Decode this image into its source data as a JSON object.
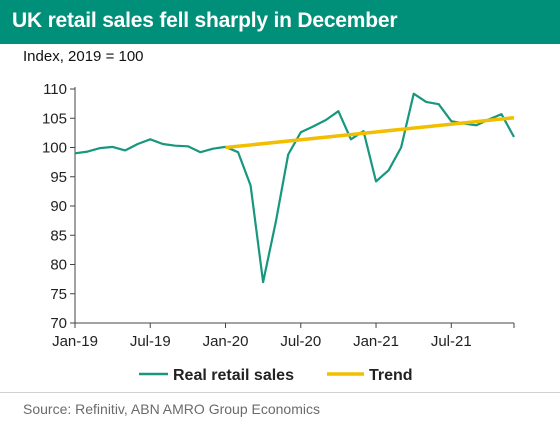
{
  "header": {
    "title": "UK retail sales fell sharply in December",
    "subtitle": "Index, 2019 = 100"
  },
  "footer": {
    "source": "Source: Refinitiv, ABN AMRO Group Economics"
  },
  "colors": {
    "title_bg": "#00907a",
    "retail_series": "#18977f",
    "trend_series": "#f1bf00",
    "axis": "#444444"
  },
  "chart_data": {
    "type": "line",
    "title": "UK retail sales fell sharply in December",
    "ylabel": "Index, 2019 = 100",
    "xlabel": "",
    "ylim": [
      70,
      110
    ],
    "yticks": [
      70,
      75,
      80,
      85,
      90,
      95,
      100,
      105,
      110
    ],
    "grid": false,
    "legend_position": "bottom",
    "x": [
      "2019-01",
      "2019-02",
      "2019-03",
      "2019-04",
      "2019-05",
      "2019-06",
      "2019-07",
      "2019-08",
      "2019-09",
      "2019-10",
      "2019-11",
      "2019-12",
      "2020-01",
      "2020-02",
      "2020-03",
      "2020-04",
      "2020-05",
      "2020-06",
      "2020-07",
      "2020-08",
      "2020-09",
      "2020-10",
      "2020-11",
      "2020-12",
      "2021-01",
      "2021-02",
      "2021-03",
      "2021-04",
      "2021-05",
      "2021-06",
      "2021-07",
      "2021-08",
      "2021-09",
      "2021-10",
      "2021-11",
      "2021-12"
    ],
    "xticks": [
      {
        "label": "Jan-19",
        "x": "2019-01"
      },
      {
        "label": "Jul-19",
        "x": "2019-07"
      },
      {
        "label": "Jan-20",
        "x": "2020-01"
      },
      {
        "label": "Jul-20",
        "x": "2020-07"
      },
      {
        "label": "Jan-21",
        "x": "2021-01"
      },
      {
        "label": "Jul-21",
        "x": "2021-07"
      }
    ],
    "series": [
      {
        "name": "Real retail sales",
        "color": "#18977f",
        "values": [
          99.0,
          99.3,
          99.9,
          100.1,
          99.5,
          100.6,
          101.4,
          100.6,
          100.3,
          100.2,
          99.2,
          99.8,
          100.1,
          99.2,
          93.5,
          77.0,
          87.2,
          98.8,
          102.6,
          103.6,
          104.7,
          106.2,
          101.4,
          102.8,
          94.2,
          96.1,
          100.0,
          109.2,
          107.8,
          107.4,
          104.5,
          104.1,
          103.8,
          104.8,
          105.7,
          101.8
        ]
      },
      {
        "name": "Trend",
        "color": "#f1bf00",
        "x": [
          "2020-01",
          "2021-12"
        ],
        "values": [
          100.0,
          105.1
        ]
      }
    ]
  }
}
